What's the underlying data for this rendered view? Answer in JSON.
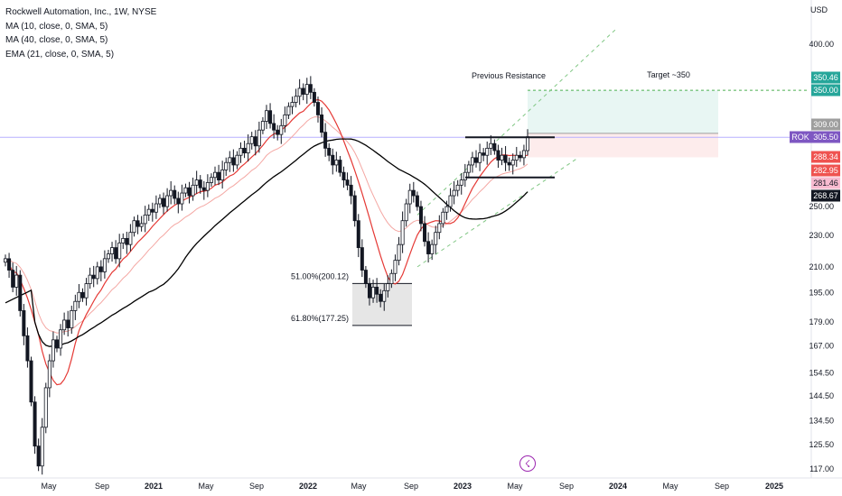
{
  "legend": {
    "title": "Rockwell Automation, Inc., 1W, NYSE",
    "ma10": "MA (10, close, 0, SMA, 5)",
    "ma40": "MA (40, close, 0, SMA, 5)",
    "ema21": "EMA (21, close, 0, SMA, 5)"
  },
  "currency": "USD",
  "annotations": {
    "previous_resistance": "Previous Resistance",
    "target": "Target ~350",
    "fib_51": "51.00%(200.12)",
    "fib_618": "61.80%(177.25)"
  },
  "colors": {
    "up": "#131722",
    "down": "#131722",
    "ma10": "#e53935",
    "ema21": "#f4a7a3",
    "ma40": "#000000",
    "target_zone": "#e8f6f3",
    "stop_zone": "#fdecec",
    "price_line": "#7b61ff",
    "rok_tag": "#7e57c2",
    "green_tag": "#26a69a",
    "red_tag": "#ef5350",
    "gray_tag": "#9e9e9e",
    "pink_tag": "#f8bbd0",
    "black_tag": "#131722"
  },
  "price_tags": [
    {
      "label": "",
      "value": "350.46",
      "color": "#26a69a"
    },
    {
      "label": "",
      "value": "350.00",
      "color": "#26a69a"
    },
    {
      "label": "",
      "value": "309.00",
      "color": "#9e9e9e"
    },
    {
      "label": "ROK",
      "value": "305.50",
      "color": "#7e57c2"
    },
    {
      "label": "",
      "value": "288.34",
      "color": "#ef5350"
    },
    {
      "label": "",
      "value": "282.95",
      "color": "#ef5350"
    },
    {
      "label": "",
      "value": "281.46",
      "color": "#f8bbd0"
    },
    {
      "label": "",
      "value": "268.67",
      "color": "#131722"
    }
  ],
  "flash_icon": "lightning-icon",
  "chart_data": {
    "type": "candlestick",
    "title": "Rockwell Automation, Inc., 1W, NYSE",
    "y_scale": "log",
    "y_unit": "USD",
    "y_ticks": [
      117.0,
      125.5,
      134.5,
      144.5,
      154.5,
      167.0,
      179.0,
      195.0,
      210.0,
      230.0,
      250.0,
      400.0
    ],
    "x_ticks": [
      "May",
      "Sep",
      "2021",
      "May",
      "Sep",
      "2022",
      "May",
      "Sep",
      "2023",
      "May",
      "Sep",
      "2024",
      "May",
      "Sep",
      "2025"
    ],
    "x_ticks_bold": [
      false,
      false,
      true,
      false,
      false,
      true,
      false,
      false,
      true,
      false,
      false,
      true,
      false,
      false,
      true
    ],
    "series_close": [
      215,
      208,
      198,
      205,
      185,
      172,
      160,
      142,
      125,
      118,
      132,
      148,
      160,
      170,
      166,
      175,
      180,
      176,
      185,
      190,
      195,
      192,
      200,
      205,
      203,
      210,
      207,
      215,
      218,
      222,
      215,
      225,
      228,
      224,
      232,
      240,
      236,
      238,
      244,
      248,
      246,
      252,
      256,
      250,
      258,
      262,
      256,
      252,
      260,
      264,
      258,
      266,
      270,
      264,
      262,
      268,
      272,
      276,
      270,
      278,
      284,
      288,
      282,
      290,
      296,
      292,
      300,
      306,
      298,
      312,
      320,
      330,
      318,
      312,
      308,
      316,
      326,
      334,
      338,
      344,
      352,
      346,
      356,
      348,
      338,
      326,
      310,
      296,
      290,
      282,
      286,
      276,
      270,
      266,
      258,
      240,
      222,
      208,
      200,
      192,
      198,
      194,
      190,
      196,
      200,
      206,
      214,
      224,
      240,
      252,
      262,
      258,
      250,
      238,
      226,
      218,
      224,
      232,
      238,
      246,
      250,
      258,
      262,
      266,
      270,
      276,
      282,
      288,
      284,
      292,
      290,
      296,
      300,
      294,
      286,
      290,
      284,
      282,
      286,
      290,
      288,
      294,
      306
    ],
    "ma40_values_note": "MA(40) smooth curve; MA(10) and EMA(21) follow price",
    "levels": {
      "resistance_top": 305.5,
      "support_bottom": 272,
      "target": 350,
      "stop_zone_top": 309,
      "stop_zone_bottom": 288.34,
      "fib_51": 200.12,
      "fib_618": 177.25
    }
  }
}
